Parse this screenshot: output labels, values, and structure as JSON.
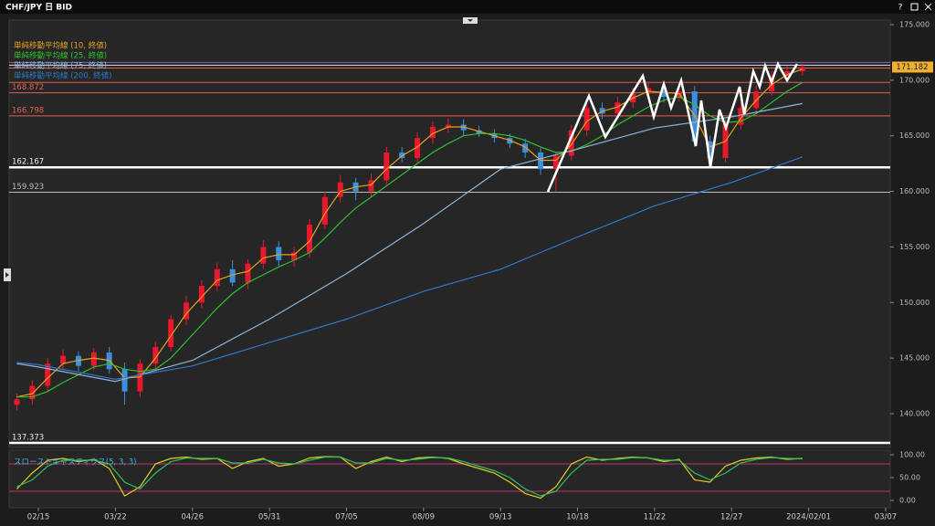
{
  "window": {
    "title": "CHF/JPY 日 BID",
    "help": "?"
  },
  "chart_data": [
    {
      "type": "candlestick",
      "xlim": [
        0.5,
        286.5
      ],
      "ylim": [
        136.96,
        175.41
      ],
      "yticks": [
        {
          "value": 140,
          "label": "140.000"
        },
        {
          "value": 145,
          "label": "145.000"
        },
        {
          "value": 150,
          "label": "150.000"
        },
        {
          "value": 155,
          "label": "155.000"
        },
        {
          "value": 160,
          "label": "160.000"
        },
        {
          "value": 165,
          "label": "165.000"
        },
        {
          "value": 170,
          "label": "170.000"
        },
        {
          "value": 175,
          "label": "175.000"
        }
      ],
      "up_color": "#e8192c",
      "down_color": "#3a8fe0",
      "candles": {
        "x": [
          3,
          8,
          13,
          18,
          23,
          28,
          33,
          38,
          43,
          48,
          53,
          58,
          63,
          68,
          73,
          78,
          83,
          88,
          93,
          98,
          103,
          108,
          113,
          118,
          123,
          128,
          133,
          138,
          143,
          148,
          153,
          158,
          163,
          168,
          173,
          178,
          183,
          188,
          193,
          198,
          203,
          208,
          213,
          218,
          223,
          228,
          233,
          238,
          243,
          248,
          253,
          258
        ],
        "open": [
          140.8,
          141.3,
          142.5,
          144.5,
          145.2,
          144.3,
          145.5,
          144.0,
          142.0,
          144.5,
          146.0,
          148.5,
          150.0,
          151.5,
          153.0,
          151.8,
          153.5,
          155.0,
          153.8,
          154.5,
          157.0,
          159.5,
          160.8,
          160.0,
          161.0,
          163.5,
          163.0,
          164.8,
          165.8,
          166.0,
          165.5,
          165.2,
          164.8,
          164.3,
          163.5,
          162.0,
          163.2,
          165.5,
          167.5,
          167.0,
          168.0,
          168.8,
          169.3,
          168.5,
          169.0,
          164.5,
          163.0,
          166.0,
          167.5,
          169.0,
          170.3,
          170.8
        ],
        "high": [
          141.8,
          143.0,
          145.0,
          145.8,
          145.6,
          145.9,
          146.0,
          144.6,
          144.9,
          146.5,
          148.9,
          150.6,
          152.0,
          153.6,
          153.8,
          153.9,
          155.6,
          155.5,
          155.0,
          157.5,
          160.0,
          161.5,
          161.2,
          161.6,
          164.0,
          164.0,
          165.3,
          166.3,
          166.6,
          166.5,
          165.9,
          165.6,
          165.2,
          164.7,
          163.9,
          163.6,
          166.0,
          168.0,
          168.0,
          168.5,
          169.3,
          169.8,
          169.8,
          169.4,
          169.5,
          165.0,
          166.5,
          168.0,
          169.5,
          170.8,
          171.3,
          171.5
        ],
        "low": [
          140.3,
          140.8,
          142.0,
          144.0,
          143.8,
          143.9,
          143.6,
          140.8,
          141.5,
          144.0,
          145.6,
          148.0,
          149.5,
          151.0,
          151.5,
          151.2,
          153.0,
          153.3,
          153.2,
          154.0,
          156.6,
          159.0,
          159.2,
          159.5,
          160.6,
          162.6,
          162.6,
          164.3,
          165.3,
          165.0,
          164.9,
          164.4,
          163.9,
          163.0,
          161.5,
          160.0,
          162.8,
          165.0,
          166.5,
          166.6,
          167.5,
          168.3,
          168.0,
          168.1,
          164.0,
          162.2,
          162.6,
          165.6,
          167.0,
          168.6,
          169.9,
          170.4
        ],
        "close": [
          141.3,
          142.5,
          144.5,
          145.2,
          144.3,
          145.5,
          144.0,
          142.0,
          144.5,
          146.0,
          148.5,
          150.0,
          151.5,
          153.0,
          151.8,
          153.5,
          155.0,
          153.8,
          154.5,
          157.0,
          159.5,
          160.8,
          160.0,
          161.0,
          163.5,
          163.0,
          164.8,
          165.8,
          166.0,
          165.5,
          165.2,
          164.8,
          164.3,
          163.5,
          162.0,
          163.2,
          165.5,
          167.5,
          167.0,
          168.0,
          168.8,
          169.3,
          168.5,
          169.0,
          164.5,
          163.0,
          166.0,
          167.5,
          169.0,
          170.3,
          170.8,
          171.2
        ]
      },
      "series": [
        {
          "name": "単純移動平均線 (10, 終値)",
          "color": "#e8a020",
          "values": [
            141.5,
            141.8,
            143.2,
            144.5,
            144.8,
            145.0,
            144.8,
            143.2,
            143.3,
            145.0,
            147.0,
            149.0,
            150.5,
            152.0,
            152.5,
            152.8,
            154.0,
            154.3,
            154.3,
            155.5,
            158.0,
            160.0,
            160.4,
            160.6,
            162.0,
            163.2,
            164.0,
            165.2,
            165.8,
            165.8,
            165.4,
            165.0,
            164.6,
            164.0,
            162.8,
            162.8,
            164.2,
            166.3,
            167.2,
            167.6,
            168.4,
            169.0,
            168.9,
            168.8,
            166.8,
            164.0,
            164.5,
            166.6,
            168.2,
            169.6,
            170.5,
            171.0
          ]
        },
        {
          "name": "単純移動平均線 (25, 終値)",
          "color": "#30c030",
          "values": [
            141.5,
            141.5,
            142.0,
            142.8,
            143.5,
            144.2,
            144.5,
            144.0,
            143.8,
            144.0,
            145.0,
            146.5,
            148.0,
            149.5,
            150.8,
            151.8,
            152.5,
            153.2,
            153.8,
            154.5,
            155.8,
            157.2,
            158.5,
            159.5,
            160.5,
            161.5,
            162.5,
            163.5,
            164.3,
            165.0,
            165.2,
            165.2,
            165.0,
            164.6,
            164.0,
            163.5,
            163.6,
            164.2,
            165.0,
            166.0,
            166.8,
            167.6,
            168.2,
            168.5,
            167.8,
            166.8,
            166.2,
            166.3,
            167.0,
            168.0,
            169.0,
            169.8
          ]
        },
        {
          "name": "単純移動平均線 (75, 終値)",
          "color": "#8fb4d8",
          "x": [
            3,
            10,
            35,
            60,
            85,
            110,
            135,
            160,
            185,
            210,
            235,
            258
          ],
          "values": [
            144.5,
            144.2,
            142.9,
            144.8,
            148.5,
            152.6,
            157.1,
            162.0,
            163.8,
            165.7,
            166.7,
            167.9
          ]
        },
        {
          "name": "単純移動平均線 (200, 終値)",
          "color": "#2f78c8",
          "x": [
            3,
            10,
            35,
            60,
            85,
            110,
            135,
            160,
            185,
            210,
            235,
            258
          ],
          "values": [
            144.6,
            144.4,
            143.1,
            144.3,
            146.4,
            148.5,
            151.0,
            153.0,
            155.9,
            158.7,
            160.8,
            163.1
          ]
        }
      ],
      "labeled_levels": [
        168.872,
        166.798,
        162.167,
        159.923,
        137.373
      ],
      "labeled_level_colors": [
        "#e06050",
        "#e06050",
        "#ffffff",
        "#bbbbbb",
        "#ffffff"
      ],
      "labeled_level_thick": [
        false,
        false,
        true,
        false,
        true
      ],
      "other_levels": [
        171.6,
        171.35,
        171.1,
        169.8
      ],
      "other_level_colors": [
        "#8060c0",
        "#dddddd",
        "#e06050",
        "#e06050"
      ],
      "last_price": 171.182
    },
    {
      "type": "line",
      "title": "スローストキャスティクス(5, 3, 3)",
      "xlim": [
        0.5,
        286.5
      ],
      "ylim": [
        -16,
        110
      ],
      "yticks": [
        {
          "value": 0,
          "label": "0.00"
        },
        {
          "value": 50,
          "label": "50.00"
        },
        {
          "value": 100,
          "label": "100.00"
        }
      ],
      "levels": [
        80,
        20
      ],
      "xticks": [
        {
          "value": 10,
          "label": "02/15"
        },
        {
          "value": 35,
          "label": "03/22"
        },
        {
          "value": 60,
          "label": "04/26"
        },
        {
          "value": 85,
          "label": "05/31"
        },
        {
          "value": 110,
          "label": "07/05"
        },
        {
          "value": 135,
          "label": "08/09"
        },
        {
          "value": 160,
          "label": "09/13"
        },
        {
          "value": 185,
          "label": "10/18"
        },
        {
          "value": 210,
          "label": "11/22"
        },
        {
          "value": 235,
          "label": "12/27"
        },
        {
          "value": 260,
          "label": "2024/02/01"
        },
        {
          "value": 285,
          "label": "03/07"
        }
      ],
      "x": [
        3,
        8,
        13,
        18,
        23,
        28,
        33,
        38,
        43,
        48,
        53,
        58,
        63,
        68,
        73,
        78,
        83,
        88,
        93,
        98,
        103,
        108,
        113,
        118,
        123,
        128,
        133,
        138,
        143,
        148,
        153,
        158,
        163,
        168,
        173,
        178,
        183,
        188,
        193,
        198,
        203,
        208,
        213,
        218,
        223,
        228,
        233,
        238,
        243,
        248,
        253,
        258
      ],
      "series": [
        {
          "color": "#e0d020",
          "values": [
            25,
            60,
            88,
            92,
            85,
            90,
            70,
            10,
            30,
            80,
            92,
            95,
            90,
            92,
            70,
            85,
            92,
            75,
            80,
            93,
            96,
            95,
            70,
            85,
            95,
            85,
            93,
            95,
            92,
            80,
            70,
            60,
            40,
            15,
            5,
            30,
            80,
            95,
            88,
            92,
            95,
            93,
            85,
            90,
            45,
            40,
            75,
            88,
            93,
            95,
            90,
            92
          ]
        },
        {
          "color": "#30c060",
          "values": [
            30,
            45,
            75,
            88,
            88,
            88,
            80,
            40,
            25,
            60,
            85,
            93,
            92,
            92,
            82,
            82,
            90,
            82,
            80,
            88,
            95,
            95,
            82,
            82,
            92,
            88,
            90,
            94,
            93,
            85,
            75,
            65,
            50,
            25,
            10,
            20,
            60,
            88,
            90,
            90,
            94,
            93,
            88,
            88,
            60,
            45,
            60,
            82,
            90,
            94,
            92,
            91
          ]
        }
      ]
    }
  ]
}
